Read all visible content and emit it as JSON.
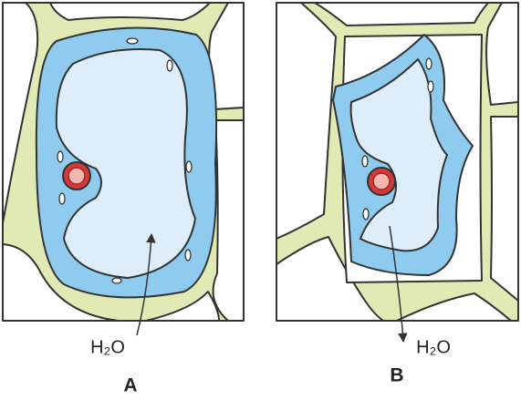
{
  "panels": [
    {
      "label": "A",
      "water": "H₂O"
    },
    {
      "label": "B",
      "water": "H₂O"
    }
  ]
}
